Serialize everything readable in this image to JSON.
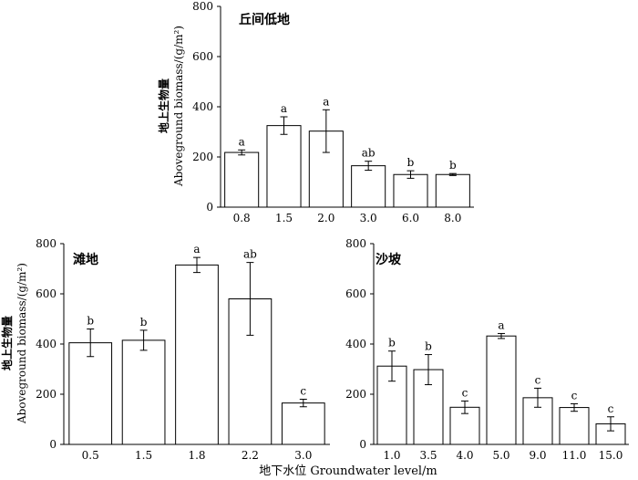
{
  "shared": {
    "ylabel_cn": "地上生物量",
    "ylabel_en": "Aboveground biomass/(g/m²)",
    "xlabel": "地下水位 Groundwater level/m",
    "yticks": [
      "0",
      "200",
      "400",
      "600",
      "800"
    ]
  },
  "chart_data": [
    {
      "type": "bar",
      "title": "丘间低地",
      "categories": [
        "0.8",
        "1.5",
        "2.0",
        "3.0",
        "6.0",
        "8.0"
      ],
      "values": [
        218,
        325,
        303,
        165,
        130,
        130
      ],
      "errors": [
        10,
        35,
        85,
        18,
        15,
        4
      ],
      "letters": [
        "a",
        "a",
        "a",
        "ab",
        "b",
        "b"
      ],
      "ylim": [
        0,
        800
      ],
      "xlabel": "",
      "ylabel": "地上生物量 Aboveground biomass/(g/m²)"
    },
    {
      "type": "bar",
      "title": "滩地",
      "categories": [
        "0.5",
        "1.5",
        "1.8",
        "2.2",
        "3.0"
      ],
      "values": [
        405,
        415,
        715,
        580,
        165
      ],
      "errors": [
        55,
        40,
        30,
        145,
        15
      ],
      "letters": [
        "b",
        "b",
        "a",
        "ab",
        "c"
      ],
      "ylim": [
        0,
        800
      ],
      "xlabel": "地下水位 Groundwater level/m",
      "ylabel": "地上生物量 Aboveground biomass/(g/m²)"
    },
    {
      "type": "bar",
      "title": "沙坡",
      "categories": [
        "1.0",
        "3.5",
        "4.0",
        "5.0",
        "9.0",
        "11.0",
        "15.0"
      ],
      "values": [
        312,
        298,
        148,
        432,
        186,
        147,
        82
      ],
      "errors": [
        60,
        60,
        25,
        10,
        38,
        15,
        28
      ],
      "letters": [
        "b",
        "b",
        "c",
        "a",
        "c",
        "c",
        "c"
      ],
      "ylim": [
        0,
        800
      ],
      "xlabel": "地下水位 Groundwater level/m",
      "ylabel": ""
    }
  ]
}
